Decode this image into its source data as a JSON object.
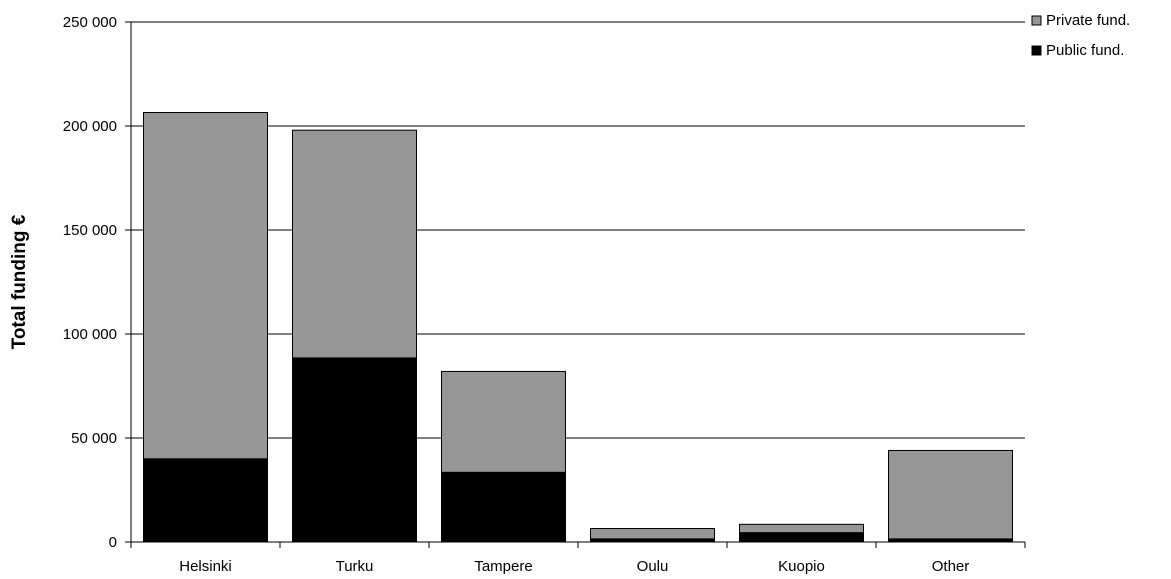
{
  "chart_data": {
    "type": "bar",
    "stacked": true,
    "title": "",
    "xlabel": "",
    "ylabel": "Total funding €",
    "ylim": [
      0,
      250000
    ],
    "yticks": [
      0,
      50000,
      100000,
      150000,
      200000,
      250000
    ],
    "ytick_labels": [
      "0",
      "50 000",
      "100 000",
      "150 000",
      "200 000",
      "250 000"
    ],
    "grid": true,
    "legend_position": "top-right",
    "categories": [
      "Helsinki",
      "Turku",
      "Tampere",
      "Oulu",
      "Kuopio",
      "Other"
    ],
    "series": [
      {
        "name": "Public fund.",
        "color": "#000000",
        "values": [
          40000,
          88500,
          33500,
          1500,
          4500,
          1500
        ]
      },
      {
        "name": "Private fund.",
        "color": "#969696",
        "values": [
          166500,
          109500,
          48500,
          5000,
          4000,
          42500
        ]
      }
    ],
    "legend_order": [
      1,
      0
    ]
  }
}
